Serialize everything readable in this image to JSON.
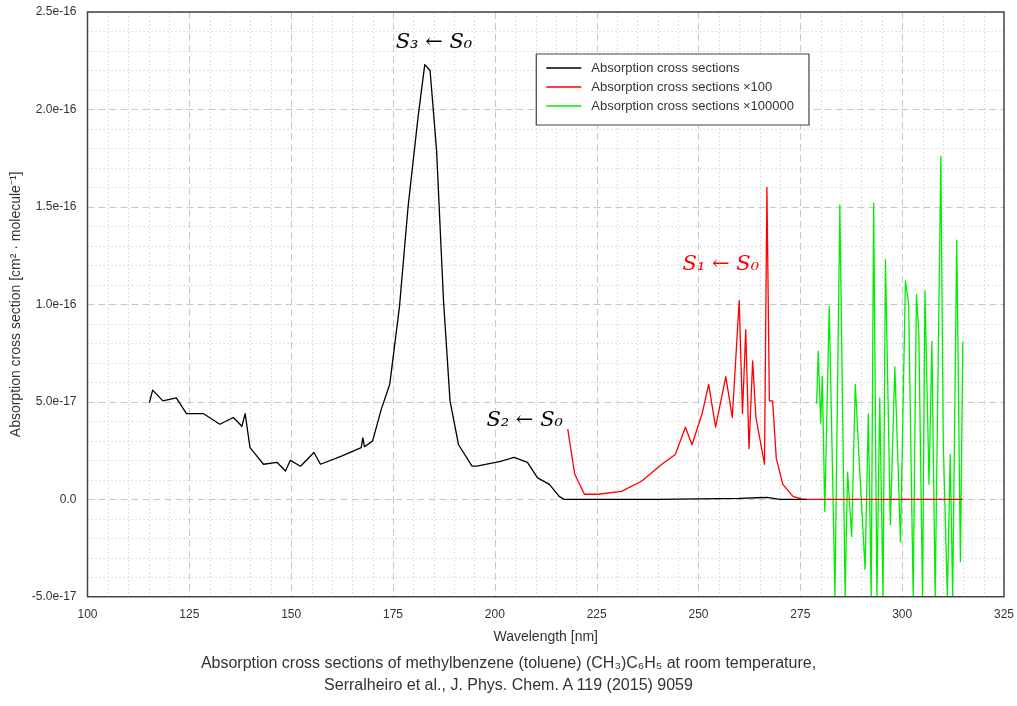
{
  "chart_data": {
    "type": "line",
    "xlabel": "Wavelength [nm]",
    "ylabel": "Absorption cross section [cm² · molecule⁻¹]",
    "xlim": [
      100,
      325
    ],
    "xticks": [
      100,
      125,
      150,
      175,
      200,
      225,
      250,
      275,
      300,
      325
    ],
    "ylim": [
      -5e-17,
      2.5e-16
    ],
    "yticks": [
      {
        "value": -5e-17,
        "label": "-5.0e-17"
      },
      {
        "value": 0,
        "label": "0.0"
      },
      {
        "value": 5e-17,
        "label": "5.0e-17"
      },
      {
        "value": 1e-16,
        "label": "1.0e-16"
      },
      {
        "value": 1.5e-16,
        "label": "1.5e-16"
      },
      {
        "value": 2e-16,
        "label": "2.0e-16"
      },
      {
        "value": 2.5e-16,
        "label": "2.5e-16"
      }
    ],
    "grid": true,
    "legend": "top right",
    "series": [
      {
        "name": "Absorption cross sections",
        "color": "#000000",
        "x": [
          115.2,
          116.0,
          118.5,
          121.8,
          124.3,
          128.4,
          132.5,
          135.8,
          137.9,
          138.7,
          139.9,
          143.2,
          146.5,
          148.6,
          149.8,
          152.3,
          155.6,
          157.2,
          162.2,
          167.2,
          167.6,
          168.0,
          170.0,
          172.1,
          174.2,
          176.6,
          178.7,
          181.2,
          182.8,
          184.1,
          185.7,
          187.4,
          189.0,
          191.1,
          194.4,
          195.6,
          201.4,
          204.7,
          208.0,
          210.5,
          213.4,
          215.8,
          217.0,
          240.0,
          260.0,
          266.8,
          270.0,
          276.5
        ],
        "values": [
          4.96e-17,
          5.6e-17,
          5.05e-17,
          5.2e-17,
          4.4e-17,
          4.4e-17,
          3.85e-17,
          4.2e-17,
          3.75e-17,
          4.4e-17,
          2.65e-17,
          1.8e-17,
          1.9e-17,
          1.45e-17,
          2e-17,
          1.7e-17,
          2.4e-17,
          1.8e-17,
          2.2e-17,
          2.65e-17,
          3.15e-17,
          2.7e-17,
          3e-17,
          4.6e-17,
          5.9e-17,
          9.9e-17,
          1.5e-16,
          1.97e-16,
          2.23e-16,
          2.2e-16,
          1.79e-16,
          1.02e-16,
          5.05e-17,
          2.8e-17,
          1.7e-17,
          1.7e-17,
          1.95e-17,
          2.15e-17,
          1.9e-17,
          1.1e-17,
          7.7e-18,
          1.5e-18,
          0,
          0,
          5e-19,
          1e-18,
          0,
          0
        ]
      },
      {
        "name": "Absorption cross sections ×100",
        "color": "#ff0000",
        "x": [
          217.9,
          219.6,
          222.0,
          225.3,
          231.1,
          236.0,
          241.0,
          244.3,
          246.8,
          248.4,
          250.9,
          252.5,
          254.2,
          256.7,
          258.3,
          260.0,
          260.8,
          261.6,
          262.4,
          263.3,
          264.1,
          266.2,
          266.8,
          267.4,
          268.2,
          269.1,
          270.7,
          273.2,
          275.6,
          314.9
        ],
        "values": [
          3.6e-17,
          1.3e-17,
          2.6e-18,
          2.6e-18,
          4.1e-18,
          9.3e-18,
          1.8e-17,
          2.3e-17,
          3.7e-17,
          2.8e-17,
          4.4e-17,
          5.9e-17,
          3.7e-17,
          6.3e-17,
          4.2e-17,
          1.02e-16,
          4.4e-17,
          8.7e-17,
          2.6e-17,
          7.1e-17,
          4.2e-17,
          1.8e-17,
          1.6e-16,
          5.05e-17,
          5.05e-17,
          2.1e-17,
          7.7e-18,
          1.5e-18,
          0,
          0
        ]
      },
      {
        "name": "Absorption cross sections ×100000",
        "color": "#00ee00",
        "x": [
          279.0,
          279.4,
          280.0,
          280.4,
          281.0,
          282.1,
          283.5,
          284.7,
          286.0,
          286.6,
          287.6,
          288.5,
          289.3,
          290.9,
          291.7,
          292.4,
          293.0,
          293.8,
          294.5,
          295.3,
          295.9,
          297.1,
          298.2,
          299.6,
          300.8,
          301.6,
          302.7,
          303.5,
          304.1,
          305.0,
          305.6,
          306.6,
          307.3,
          308.1,
          309.1,
          309.5,
          310.1,
          311.1,
          311.8,
          312.4,
          313.4,
          314.3,
          314.9
        ],
        "values": [
          4.9e-17,
          7.6e-17,
          3.9e-17,
          6.3e-17,
          -6.2e-18,
          9.9e-17,
          -4.95e-17,
          1.51e-16,
          -5e-17,
          1.4e-17,
          -1.9e-17,
          5.9e-17,
          2.6e-17,
          -3.6e-17,
          4.4e-17,
          -5e-17,
          1.52e-16,
          -5e-17,
          5.2e-17,
          -5e-17,
          1.23e-16,
          -1.3e-17,
          6.8e-17,
          -2.2e-17,
          1.12e-16,
          1e-16,
          -5e-17,
          1.05e-16,
          8.5e-17,
          -5e-17,
          1.07e-16,
          7.7e-18,
          8.1e-17,
          -5e-17,
          1.11e-16,
          1.76e-16,
          2.8e-17,
          -5e-17,
          2.3e-17,
          -5e-17,
          1.33e-16,
          -3.2e-17,
          8.1e-17
        ]
      }
    ],
    "annotations": [
      "S₃ ← S₀",
      "S₂ ← S₀",
      "S₁ ← S₀",
      "Absorption cross sections of methylbenzene (toluene) (CH₃)C₆H₅ at room temperature,",
      "Serralheiro et al., J. Phys. Chem. A 119 (2015) 9059"
    ]
  }
}
